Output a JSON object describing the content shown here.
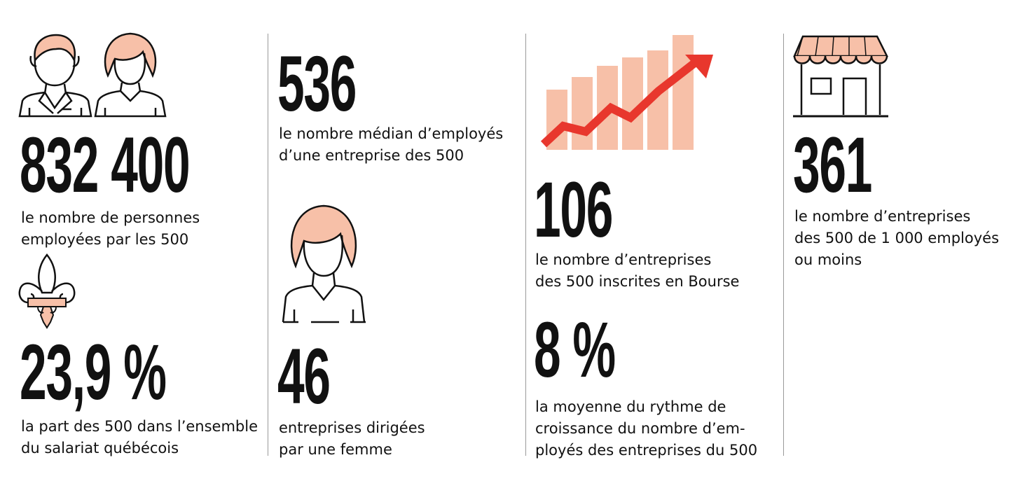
{
  "colors": {
    "accent_fill": "#f7c0a8",
    "arrow": "#e8372d",
    "ink": "#111111",
    "divider": "#9a9a9a"
  },
  "stats": {
    "employees": {
      "value": "832 400",
      "caption": [
        "le nombre de personnes",
        "employées par les 500"
      ]
    },
    "quebec_share": {
      "value": "23,9 %",
      "caption": [
        "la part des 500 dans l’ensemble",
        "du salariat québécois"
      ]
    },
    "median_employees": {
      "value": "536",
      "caption": [
        "le nombre médian d’employés",
        "d’une entreprise des 500"
      ]
    },
    "women_led": {
      "value": "46",
      "caption": [
        "entreprises dirigées",
        "par une femme"
      ]
    },
    "listed": {
      "value": "106",
      "caption": [
        "le nombre d’entreprises",
        "des 500 inscrites en Bourse"
      ]
    },
    "growth": {
      "value": "8 %",
      "caption": [
        "la moyenne du rythme de",
        "croissance du nombre d’em-",
        "ployés des entreprises du 500"
      ]
    },
    "small_firms": {
      "value": "361",
      "caption": [
        "le nombre d’entreprises",
        "des 500 de 1 000 employés",
        "ou moins"
      ]
    }
  },
  "icons": {
    "employees": [
      "man-employee-icon",
      "woman-employee-icon"
    ],
    "quebec_share": "fleur-de-lis-icon",
    "women_led": "woman-leader-icon",
    "listed": "growth-chart-arrow-icon",
    "small_firms": "storefront-icon"
  }
}
